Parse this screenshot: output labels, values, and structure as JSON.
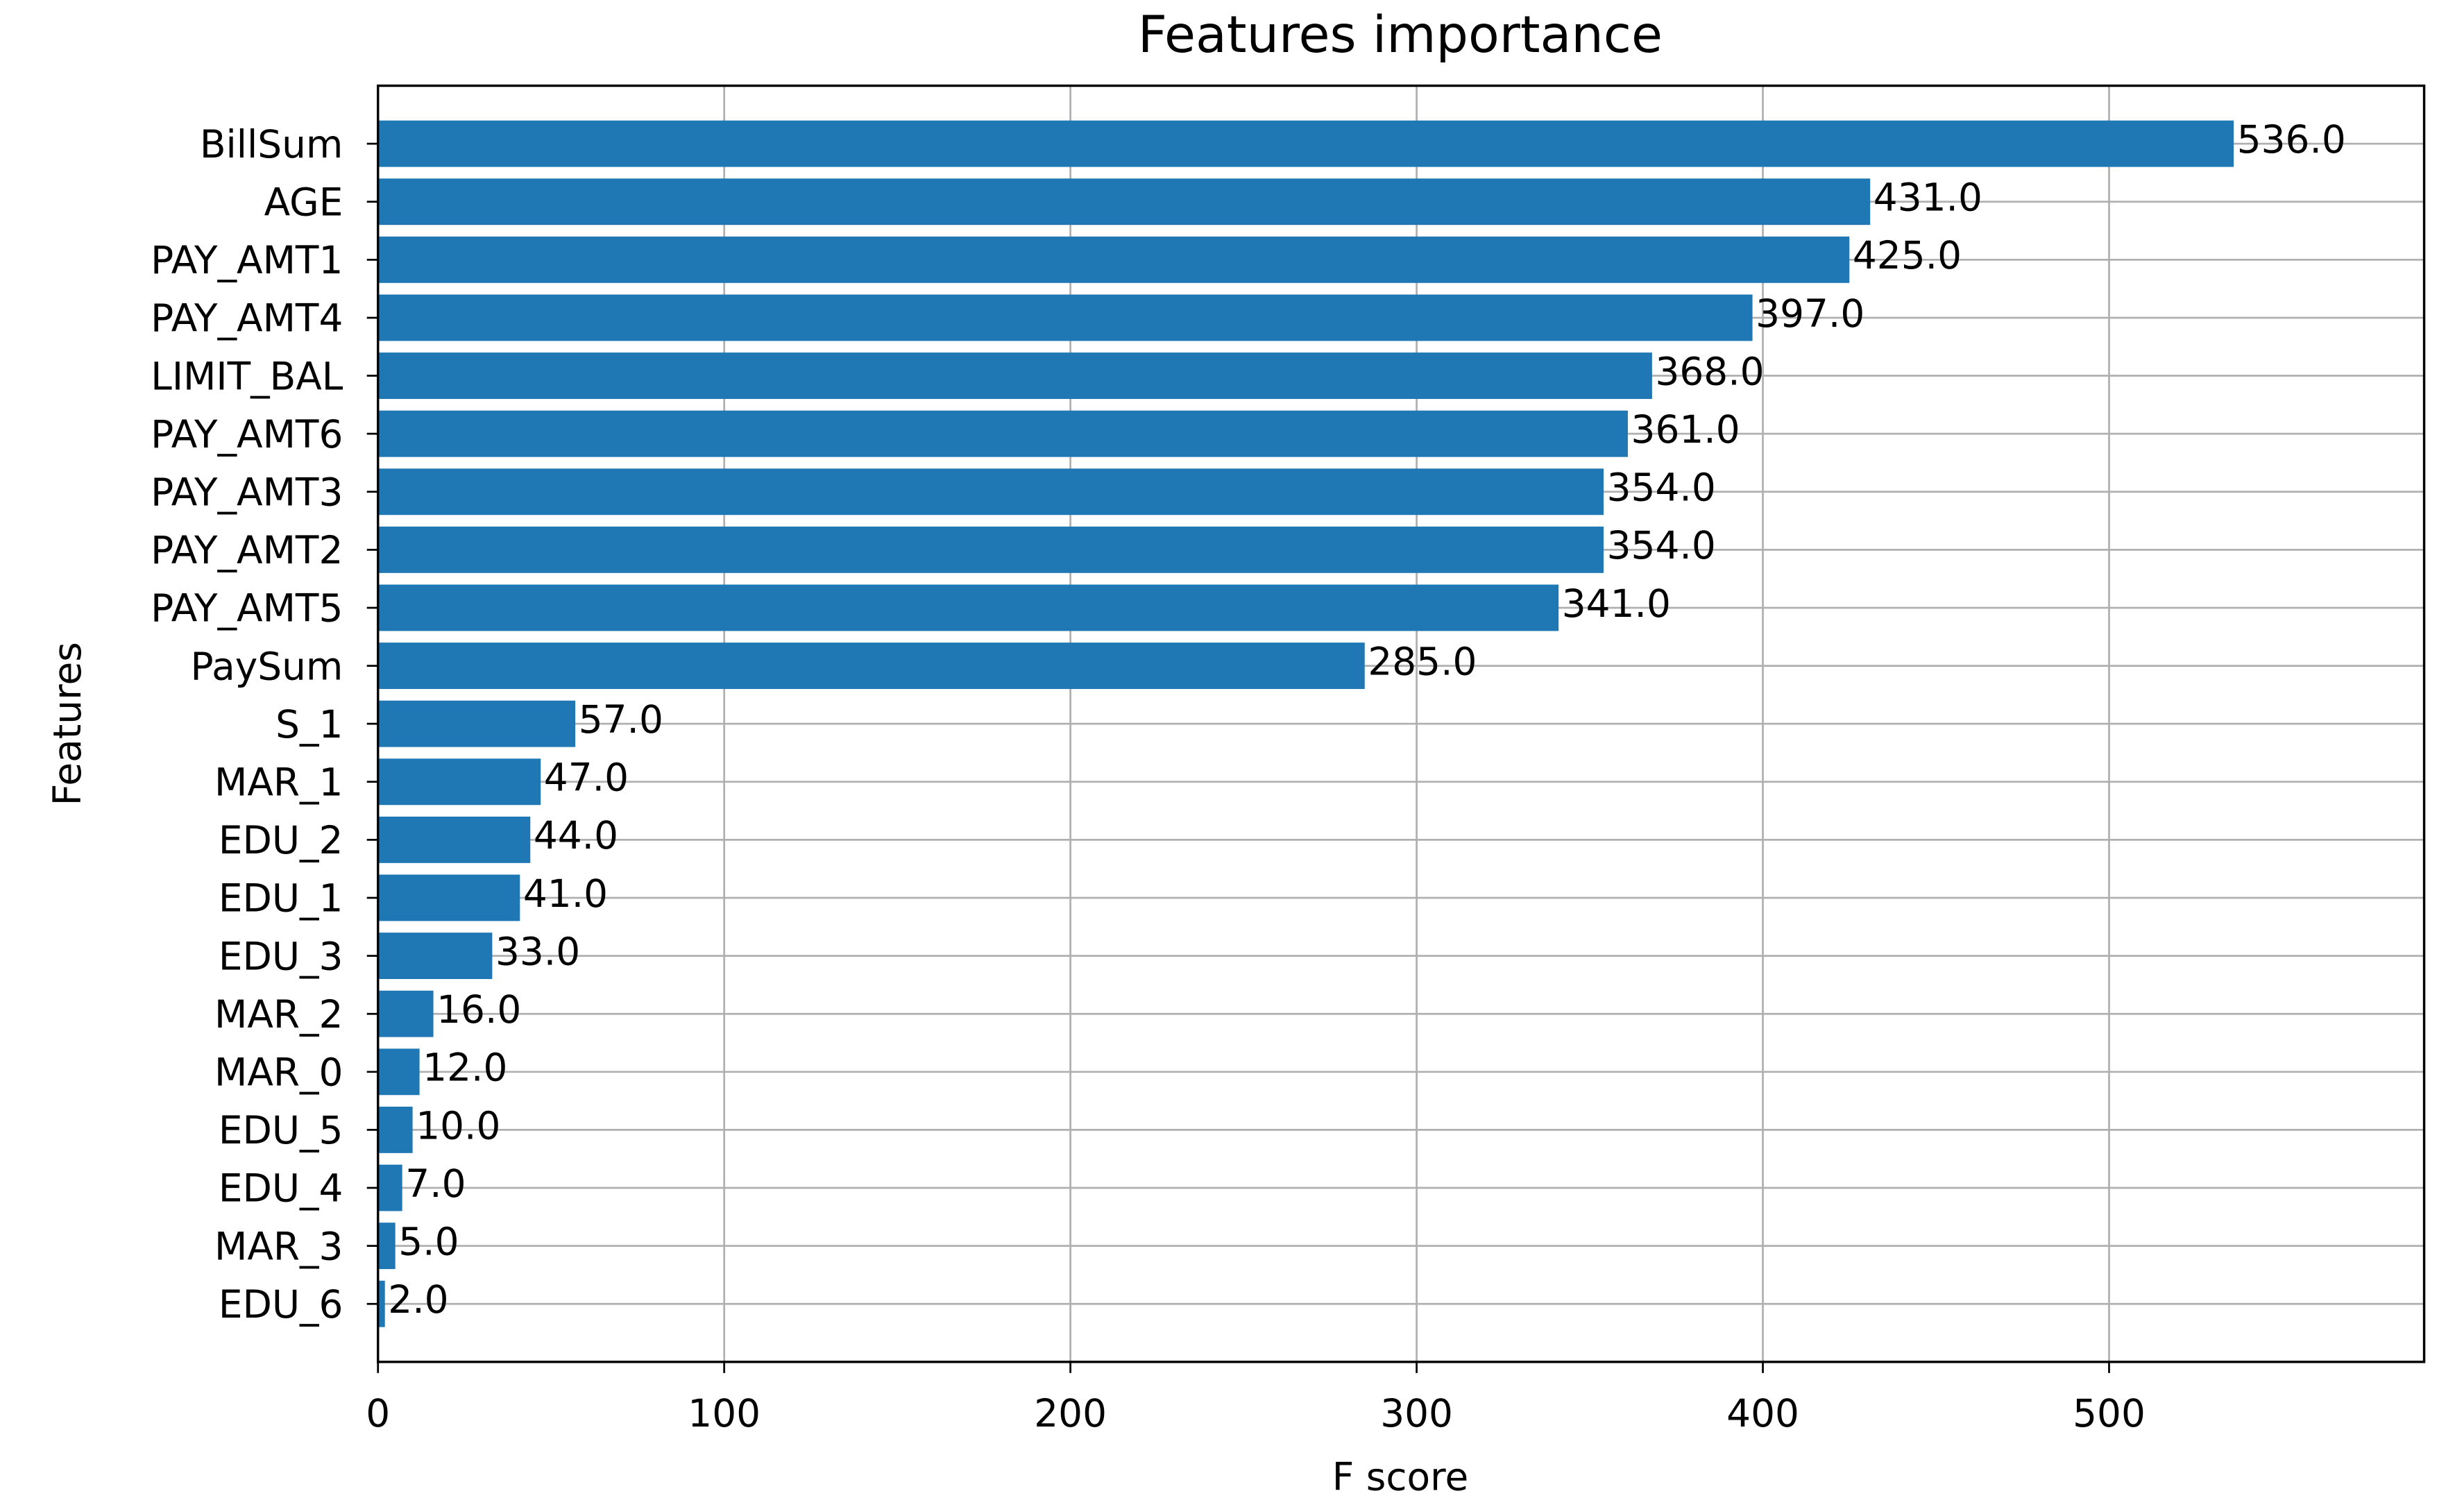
{
  "chart_data": {
    "type": "bar",
    "orientation": "horizontal",
    "title": "Features importance",
    "x_label": "F score",
    "y_label": "Features",
    "categories": [
      "BillSum",
      "AGE",
      "PAY_AMT1",
      "PAY_AMT4",
      "LIMIT_BAL",
      "PAY_AMT6",
      "PAY_AMT3",
      "PAY_AMT2",
      "PAY_AMT5",
      "PaySum",
      "S_1",
      "MAR_1",
      "EDU_2",
      "EDU_1",
      "EDU_3",
      "MAR_2",
      "MAR_0",
      "EDU_5",
      "EDU_4",
      "MAR_3",
      "EDU_6"
    ],
    "values": [
      536,
      431,
      425,
      397,
      368,
      361,
      354,
      354,
      341,
      285,
      57,
      47,
      44,
      41,
      33,
      16,
      12,
      10,
      7,
      5,
      2
    ],
    "value_labels": [
      "536.0",
      "431.0",
      "425.0",
      "397.0",
      "368.0",
      "361.0",
      "354.0",
      "354.0",
      "341.0",
      "285.0",
      "57.0",
      "47.0",
      "44.0",
      "41.0",
      "33.0",
      "16.0",
      "12.0",
      "10.0",
      "7.0",
      "5.0",
      "2.0"
    ],
    "color": "#1f77b4",
    "xlim": [
      0,
      591
    ],
    "xticks": [
      0,
      100,
      200,
      300,
      400,
      500
    ],
    "grid": true
  }
}
